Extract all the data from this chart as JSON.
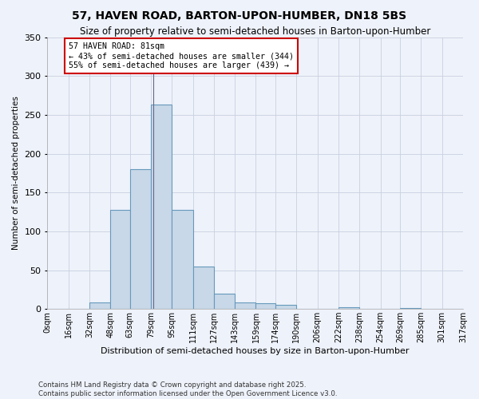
{
  "title": "57, HAVEN ROAD, BARTON-UPON-HUMBER, DN18 5BS",
  "subtitle": "Size of property relative to semi-detached houses in Barton-upon-Humber",
  "xlabel": "Distribution of semi-detached houses by size in Barton-upon-Humber",
  "ylabel": "Number of semi-detached properties",
  "bin_labels": [
    "0sqm",
    "16sqm",
    "32sqm",
    "48sqm",
    "63sqm",
    "79sqm",
    "95sqm",
    "111sqm",
    "127sqm",
    "143sqm",
    "159sqm",
    "174sqm",
    "190sqm",
    "206sqm",
    "222sqm",
    "238sqm",
    "254sqm",
    "269sqm",
    "285sqm",
    "301sqm",
    "317sqm"
  ],
  "bin_edges": [
    0,
    16,
    32,
    48,
    63,
    79,
    95,
    111,
    127,
    143,
    159,
    174,
    190,
    206,
    222,
    238,
    254,
    269,
    285,
    301,
    317
  ],
  "bar_heights": [
    0,
    0,
    8,
    128,
    180,
    263,
    128,
    55,
    20,
    8,
    7,
    5,
    0,
    0,
    2,
    0,
    0,
    1,
    0,
    0
  ],
  "bar_color": "#c8d8e8",
  "bar_edge_color": "#6699bb",
  "grid_color": "#c8d0df",
  "bg_color": "#eef2fa",
  "property_line_x": 81,
  "annotation_text": "57 HAVEN ROAD: 81sqm\n← 43% of semi-detached houses are smaller (344)\n55% of semi-detached houses are larger (439) →",
  "annotation_box_color": "#ffffff",
  "annotation_border_color": "#cc0000",
  "ylim": [
    0,
    350
  ],
  "yticks": [
    0,
    50,
    100,
    150,
    200,
    250,
    300,
    350
  ],
  "footnote1": "Contains HM Land Registry data © Crown copyright and database right 2025.",
  "footnote2": "Contains public sector information licensed under the Open Government Licence v3.0."
}
